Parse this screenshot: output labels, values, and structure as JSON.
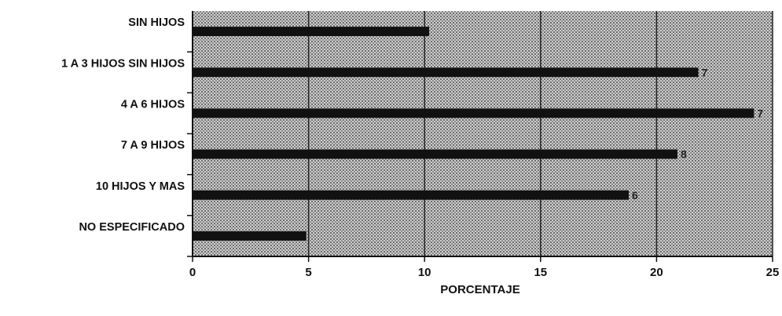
{
  "chart_data": {
    "type": "bar",
    "orientation": "horizontal",
    "title": "",
    "xlabel": "PORCENTAJE",
    "ylabel": "",
    "xlim": [
      0,
      25
    ],
    "xticks": [
      "0",
      "5",
      "10",
      "15",
      "20",
      "25"
    ],
    "grid": true,
    "categories": [
      "SIN HIJOS",
      "1 A 3 HIJOS SIN HIJOS",
      "4 A 6 HIJOS",
      "7 A 9 HIJOS",
      "10 HIJOS Y MAS",
      "NO ESPECIFICADO"
    ],
    "values": [
      10.2,
      21.8,
      24.2,
      20.9,
      18.8,
      4.9
    ],
    "data_labels": [
      "",
      "7",
      "7",
      "8",
      "6",
      ""
    ],
    "colors": {
      "plot_background": "#9c9c9c",
      "bar": "#111111",
      "gridline": "#222222"
    }
  }
}
